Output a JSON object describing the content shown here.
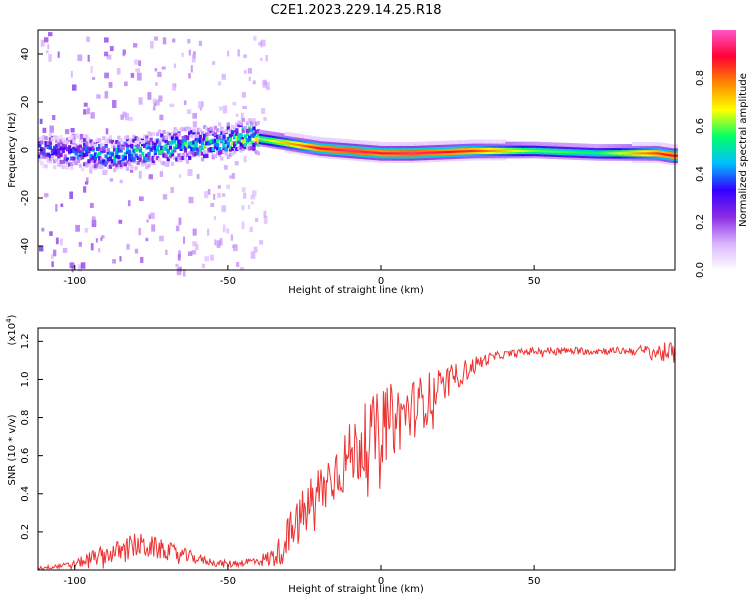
{
  "title": "C2E1.2023.229.14.25.R18",
  "chart_data": [
    {
      "type": "heatmap",
      "xlabel": "Height of straight line (km)",
      "ylabel": "Frequency (Hz)",
      "xlim": [
        -112,
        96
      ],
      "ylim": [
        -50,
        50
      ],
      "xticks": [
        -100,
        -50,
        0,
        50
      ],
      "yticks": [
        -40,
        -20,
        0,
        20,
        40
      ],
      "colorbar": {
        "label": "Normalized spectral amplitude",
        "range": [
          0.0,
          1.0
        ],
        "ticks": [
          "0.0",
          "0.2",
          "0.4",
          "0.6",
          "0.8"
        ],
        "colors": [
          "#ffffff",
          "#d9b3ff",
          "#8a2be2",
          "#3300ff",
          "#00bfff",
          "#00ff66",
          "#ffff00",
          "#ff8800",
          "#ff0033",
          "#ff55cc"
        ]
      },
      "ridge": {
        "description_points_x": [
          -110,
          -90,
          -70,
          -50,
          -44,
          -40,
          -30,
          -20,
          -10,
          0,
          10,
          30,
          50,
          70,
          90,
          95
        ],
        "center_freq": [
          0,
          -2,
          1,
          4,
          6,
          5,
          3,
          1,
          0,
          -1,
          -1,
          0,
          0,
          -1,
          -1,
          -2
        ],
        "peak_amplitude": [
          0.35,
          0.45,
          0.5,
          0.55,
          0.55,
          0.6,
          0.75,
          0.9,
          0.95,
          0.9,
          0.95,
          0.85,
          0.6,
          0.55,
          0.85,
          0.9
        ]
      }
    },
    {
      "type": "line",
      "xlabel": "Height of straight line (km)",
      "ylabel": "SNR (10 * v/v)",
      "yscale_label": "(x10^4)",
      "xlim": [
        -112,
        96
      ],
      "ylim": [
        0,
        1.27
      ],
      "xticks": [
        -100,
        -50,
        0,
        50
      ],
      "yticks": [
        0.2,
        0.4,
        0.6,
        0.8,
        1.0,
        1.2
      ],
      "series": [
        {
          "color": "#ee3333",
          "x": [
            -112,
            -105,
            -100,
            -95,
            -90,
            -85,
            -80,
            -75,
            -70,
            -65,
            -60,
            -55,
            -50,
            -45,
            -40,
            -36,
            -33,
            -30,
            -27,
            -25,
            -22,
            -18,
            -15,
            -10,
            -5,
            0,
            3,
            6,
            10,
            15,
            20,
            25,
            30,
            35,
            40,
            45,
            50,
            55,
            60,
            65,
            70,
            75,
            80,
            85,
            90,
            96
          ],
          "y": [
            0.01,
            0.02,
            0.03,
            0.06,
            0.08,
            0.1,
            0.13,
            0.12,
            0.1,
            0.08,
            0.06,
            0.04,
            0.03,
            0.04,
            0.05,
            0.06,
            0.1,
            0.18,
            0.25,
            0.3,
            0.38,
            0.45,
            0.52,
            0.6,
            0.68,
            0.75,
            0.78,
            0.8,
            0.84,
            0.9,
            0.96,
            1.02,
            1.07,
            1.11,
            1.13,
            1.14,
            1.15,
            1.15,
            1.15,
            1.15,
            1.15,
            1.15,
            1.15,
            1.15,
            1.14,
            1.14
          ],
          "noise_amplitude": [
            0.01,
            0.01,
            0.02,
            0.04,
            0.05,
            0.06,
            0.07,
            0.06,
            0.05,
            0.04,
            0.03,
            0.02,
            0.02,
            0.02,
            0.03,
            0.05,
            0.08,
            0.12,
            0.13,
            0.14,
            0.15,
            0.15,
            0.16,
            0.18,
            0.2,
            0.2,
            0.2,
            0.18,
            0.16,
            0.14,
            0.1,
            0.07,
            0.05,
            0.03,
            0.02,
            0.02,
            0.02,
            0.02,
            0.02,
            0.02,
            0.02,
            0.02,
            0.02,
            0.03,
            0.05,
            0.06
          ]
        }
      ]
    }
  ]
}
